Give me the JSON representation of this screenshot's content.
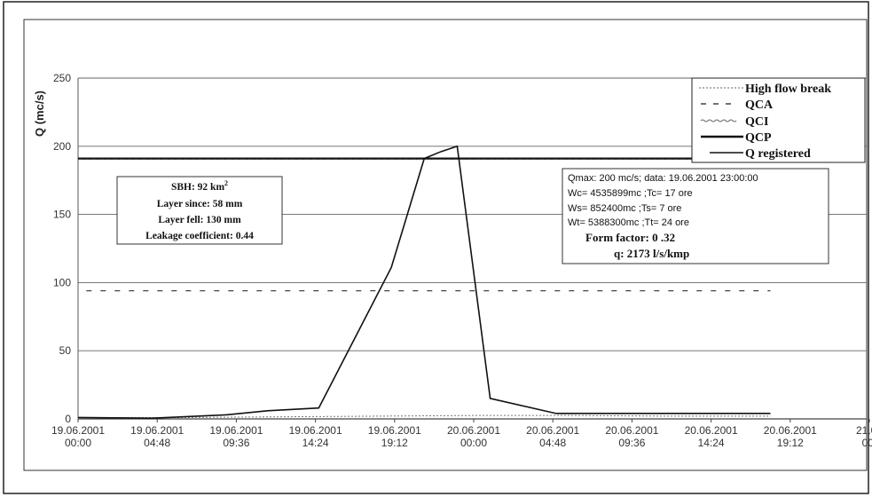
{
  "chart_data": {
    "type": "line",
    "ylabel": "Q (mc/s)",
    "xlabel": "",
    "ylim": [
      0,
      250
    ],
    "y_ticks": [
      "0",
      "50",
      "100",
      "150",
      "200",
      "250"
    ],
    "x_ticks": [
      {
        "date": "19.06.2001",
        "time": "00:00"
      },
      {
        "date": "19.06.2001",
        "time": "04:48"
      },
      {
        "date": "19.06.2001",
        "time": "09:36"
      },
      {
        "date": "19.06.2001",
        "time": "14:24"
      },
      {
        "date": "19.06.2001",
        "time": "19:12"
      },
      {
        "date": "20.06.2001",
        "time": "00:00"
      },
      {
        "date": "20.06.2001",
        "time": "04:48"
      },
      {
        "date": "20.06.2001",
        "time": "09:36"
      },
      {
        "date": "20.06.2001",
        "time": "14:24"
      },
      {
        "date": "20.06.2001",
        "time": "19:12"
      },
      {
        "date": "21.06",
        "time": "00:"
      }
    ],
    "grid": "horizontal",
    "legend_position": "top-right",
    "series": [
      {
        "name": "High flow break",
        "style": "dotted",
        "color": "#777777",
        "x": [
          0,
          6,
          12,
          18,
          24,
          30,
          36,
          42
        ],
        "y": [
          1,
          1,
          1.5,
          2,
          2.5,
          2.5,
          2,
          2
        ]
      },
      {
        "name": "QCA",
        "style": "dashed",
        "color": "#444444",
        "x": [
          0.5,
          42
        ],
        "y": [
          94,
          94
        ]
      },
      {
        "name": "QCI",
        "style": "wavy",
        "color": "#666666",
        "x": [
          0,
          42
        ],
        "y": [
          191,
          191
        ]
      },
      {
        "name": "QCP",
        "style": "solid-thick",
        "color": "#111111",
        "x": [
          0,
          42
        ],
        "y": [
          191,
          191
        ]
      },
      {
        "name": "Q registered",
        "style": "solid",
        "color": "#111111",
        "x": [
          0,
          4.5,
          9,
          11.5,
          14.6,
          19,
          21,
          22,
          23,
          25,
          29,
          42
        ],
        "y": [
          1,
          0.5,
          3,
          6,
          8,
          111,
          191,
          196,
          200,
          15,
          4,
          4
        ]
      }
    ]
  },
  "basin_box": {
    "line1_prefix": "SBH: 92 km",
    "line1_sup": "2",
    "line2": "Layer since: 58 mm",
    "line3": "Layer fell: 130 mm",
    "line4": "Leakage coefficient: 0.44"
  },
  "info_box": {
    "line1": "Qmax:  200 mc/s; data: 19.06.2001 23:00:00",
    "line2": "Wc= 4535899mc ;Tc= 17 ore",
    "line3": "Ws= 852400mc ;Ts= 7 ore",
    "line4": "Wt= 5388300mc ;Tt= 24 ore",
    "line5": "Form factor: 0 .32",
    "line6": "q:  2173 l/s/kmp"
  }
}
